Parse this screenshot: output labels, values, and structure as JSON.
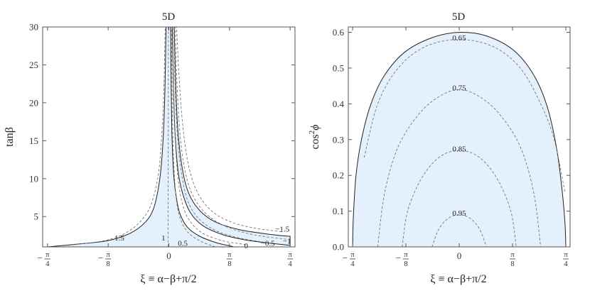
{
  "panels": [
    {
      "title": "5D",
      "ylabel": "tanβ",
      "xlabel": "ξ ≡ α−β+π/2",
      "x_ticks": [
        {
          "value": -0.7854,
          "num": "π",
          "den": "4",
          "neg": true
        },
        {
          "value": -0.3927,
          "num": "π",
          "den": "8",
          "neg": true
        },
        {
          "value": 0,
          "text": "0"
        },
        {
          "value": 0.3927,
          "num": "π",
          "den": "8",
          "neg": false
        },
        {
          "value": 0.7854,
          "num": "π",
          "den": "4",
          "neg": false
        }
      ],
      "y_ticks": [
        "5",
        "10",
        "15",
        "20",
        "25",
        "30"
      ],
      "contour_labels": [
        {
          "text": "1.5",
          "x": -0.32,
          "y": 2.2
        },
        {
          "text": "1",
          "x": -0.035,
          "y": 2.2
        },
        {
          "text": "0.5",
          "x": 0.09,
          "y": 1.5
        },
        {
          "text": "0",
          "x": 0.5,
          "y": 1.2
        },
        {
          "text": "−0.5",
          "x": 0.64,
          "y": 1.5
        },
        {
          "text": "−1",
          "x": 0.765,
          "y": 1.8
        },
        {
          "text": "−1.5",
          "x": 0.735,
          "y": 3.4
        }
      ]
    },
    {
      "title": "5D",
      "ylabel": "cos²ϕ",
      "ylabel_main": "cos",
      "ylabel_sup": "2",
      "ylabel_var": "ϕ",
      "xlabel": "ξ ≡ α−β+π/2",
      "x_ticks": [
        {
          "value": -0.7854,
          "num": "π",
          "den": "4",
          "neg": true
        },
        {
          "value": -0.3927,
          "num": "π",
          "den": "8",
          "neg": true
        },
        {
          "value": 0,
          "text": "0"
        },
        {
          "value": 0.3927,
          "num": "π",
          "den": "8",
          "neg": false
        },
        {
          "value": 0.7854,
          "num": "π",
          "den": "4",
          "neg": false
        }
      ],
      "y_ticks": [
        "0.0",
        "0.1",
        "0.2",
        "0.3",
        "0.4",
        "0.5",
        "0.6"
      ],
      "contour_labels": [
        {
          "text": "0.65",
          "x": 0.0,
          "y": 0.585
        },
        {
          "text": "0.75",
          "x": 0.0,
          "y": 0.445
        },
        {
          "text": "0.85",
          "x": 0.0,
          "y": 0.275
        },
        {
          "text": "0.95",
          "x": 0.0,
          "y": 0.095
        }
      ]
    }
  ],
  "chart_data": [
    {
      "type": "area",
      "title": "5D",
      "xlabel": "ξ ≡ α−β+π/2",
      "ylabel": "tanβ",
      "xlim": [
        -0.8168,
        0.8168
      ],
      "ylim": [
        1,
        30
      ],
      "grid": false,
      "allowed_region": {
        "left_boundary": [
          [
            -0.785,
            1.0
          ],
          [
            -0.6,
            1.35
          ],
          [
            -0.4,
            1.8
          ],
          [
            -0.25,
            2.8
          ],
          [
            -0.15,
            4.3
          ],
          [
            -0.1,
            6.0
          ],
          [
            -0.07,
            8.5
          ],
          [
            -0.05,
            11.5
          ],
          [
            -0.035,
            16.0
          ],
          [
            -0.025,
            22.0
          ],
          [
            -0.018,
            30.0
          ]
        ],
        "inner_left_boundary": [
          [
            0.012,
            30.0
          ],
          [
            0.015,
            22.0
          ],
          [
            0.02,
            16.0
          ],
          [
            0.03,
            11.0
          ],
          [
            0.045,
            8.0
          ],
          [
            0.07,
            5.5
          ],
          [
            0.12,
            3.6
          ],
          [
            0.2,
            2.4
          ],
          [
            0.3,
            1.6
          ],
          [
            0.38,
            1.2
          ],
          [
            0.42,
            1.0
          ]
        ],
        "inner_right_boundary": [
          [
            0.022,
            30.0
          ],
          [
            0.03,
            22.0
          ],
          [
            0.04,
            16.0
          ],
          [
            0.06,
            11.0
          ],
          [
            0.09,
            8.0
          ],
          [
            0.14,
            5.5
          ],
          [
            0.22,
            3.8
          ],
          [
            0.35,
            2.6
          ],
          [
            0.5,
            1.9
          ],
          [
            0.65,
            1.5
          ],
          [
            0.785,
            1.2
          ]
        ],
        "right_boundary": [
          [
            0.035,
            30.0
          ],
          [
            0.045,
            22.0
          ],
          [
            0.06,
            16.0
          ],
          [
            0.09,
            11.0
          ],
          [
            0.13,
            8.0
          ],
          [
            0.2,
            5.8
          ],
          [
            0.3,
            4.3
          ],
          [
            0.45,
            3.3
          ],
          [
            0.6,
            2.8
          ],
          [
            0.72,
            2.5
          ],
          [
            0.785,
            2.4
          ]
        ]
      },
      "contours": [
        {
          "level": "1.5",
          "points": [
            [
              -0.65,
              1.2
            ],
            [
              -0.4,
              1.9
            ],
            [
              -0.25,
              3.2
            ],
            [
              -0.15,
              5.2
            ],
            [
              -0.1,
              7.5
            ],
            [
              -0.065,
              11.0
            ],
            [
              -0.045,
              16.0
            ],
            [
              -0.032,
              22.0
            ],
            [
              -0.024,
              30.0
            ]
          ]
        },
        {
          "level": "1",
          "points": [
            [
              -0.005,
              1.0
            ],
            [
              -0.005,
              5.0
            ],
            [
              -0.004,
              12.0
            ],
            [
              -0.003,
              22.0
            ],
            [
              -0.003,
              30.0
            ]
          ]
        },
        {
          "level": "0.5",
          "points": [
            [
              0.3,
              1.0
            ],
            [
              0.2,
              1.8
            ],
            [
              0.12,
              3.0
            ],
            [
              0.07,
              5.0
            ],
            [
              0.045,
              8.0
            ],
            [
              0.03,
              13.0
            ],
            [
              0.022,
              20.0
            ],
            [
              0.017,
              30.0
            ]
          ]
        },
        {
          "level": "0",
          "points": [
            [
              0.5,
              1.3
            ],
            [
              0.35,
              1.8
            ],
            [
              0.22,
              2.8
            ],
            [
              0.14,
              4.3
            ],
            [
              0.09,
              6.5
            ],
            [
              0.06,
              10.0
            ],
            [
              0.042,
              15.0
            ],
            [
              0.03,
              22.0
            ],
            [
              0.025,
              30.0
            ]
          ]
        },
        {
          "level": "−0.5",
          "points": [
            [
              0.62,
              1.6
            ],
            [
              0.45,
              2.2
            ],
            [
              0.3,
              3.2
            ],
            [
              0.19,
              4.8
            ],
            [
              0.12,
              7.2
            ],
            [
              0.08,
              11.0
            ],
            [
              0.055,
              16.0
            ],
            [
              0.04,
              23.0
            ],
            [
              0.033,
              30.0
            ]
          ]
        },
        {
          "level": "−1",
          "points": [
            [
              0.76,
              2.0
            ],
            [
              0.55,
              2.6
            ],
            [
              0.38,
              3.6
            ],
            [
              0.25,
              5.2
            ],
            [
              0.16,
              7.6
            ],
            [
              0.105,
              11.0
            ],
            [
              0.072,
              16.0
            ],
            [
              0.052,
              23.0
            ],
            [
              0.042,
              30.0
            ]
          ]
        },
        {
          "level": "−1.5",
          "points": [
            [
              0.73,
              3.0
            ],
            [
              0.55,
              3.5
            ],
            [
              0.4,
              4.3
            ],
            [
              0.28,
              5.7
            ],
            [
              0.19,
              8.0
            ],
            [
              0.13,
              11.5
            ],
            [
              0.09,
              17.0
            ],
            [
              0.065,
              24.0
            ],
            [
              0.05,
              30.0
            ]
          ]
        }
      ]
    },
    {
      "type": "area",
      "title": "5D",
      "xlabel": "ξ ≡ α−β+π/2",
      "ylabel": "cos²ϕ",
      "xlim": [
        -0.8168,
        0.8168
      ],
      "ylim": [
        0,
        0.615
      ],
      "grid": false,
      "allowed_region": {
        "boundary": [
          [
            -0.785,
            0.0
          ],
          [
            -0.78,
            0.08
          ],
          [
            -0.76,
            0.2
          ],
          [
            -0.72,
            0.3
          ],
          [
            -0.65,
            0.4
          ],
          [
            -0.55,
            0.48
          ],
          [
            -0.4,
            0.545
          ],
          [
            -0.2,
            0.585
          ],
          [
            0.0,
            0.6
          ],
          [
            0.2,
            0.59
          ],
          [
            0.4,
            0.55
          ],
          [
            0.55,
            0.48
          ],
          [
            0.65,
            0.39
          ],
          [
            0.72,
            0.27
          ],
          [
            0.76,
            0.15
          ],
          [
            0.78,
            0.06
          ],
          [
            0.785,
            0.0
          ]
        ]
      },
      "contours": [
        {
          "level": "0.65",
          "points": [
            [
              -0.7,
              0.25
            ],
            [
              -0.6,
              0.4
            ],
            [
              -0.45,
              0.5
            ],
            [
              -0.25,
              0.56
            ],
            [
              0.0,
              0.58
            ],
            [
              0.25,
              0.56
            ],
            [
              0.45,
              0.5
            ],
            [
              0.6,
              0.4
            ],
            [
              0.7,
              0.3
            ],
            [
              0.78,
              0.15
            ]
          ]
        },
        {
          "level": "0.75",
          "points": [
            [
              -0.6,
              0.0
            ],
            [
              -0.55,
              0.15
            ],
            [
              -0.45,
              0.28
            ],
            [
              -0.3,
              0.37
            ],
            [
              -0.15,
              0.42
            ],
            [
              0.0,
              0.44
            ],
            [
              0.15,
              0.42
            ],
            [
              0.3,
              0.37
            ],
            [
              0.45,
              0.28
            ],
            [
              0.55,
              0.15
            ],
            [
              0.6,
              0.0
            ]
          ]
        },
        {
          "level": "0.85",
          "points": [
            [
              -0.42,
              0.0
            ],
            [
              -0.38,
              0.1
            ],
            [
              -0.28,
              0.19
            ],
            [
              -0.15,
              0.25
            ],
            [
              0.0,
              0.27
            ],
            [
              0.15,
              0.25
            ],
            [
              0.28,
              0.19
            ],
            [
              0.38,
              0.1
            ],
            [
              0.42,
              0.0
            ]
          ]
        },
        {
          "level": "0.95",
          "points": [
            [
              -0.2,
              0.0
            ],
            [
              -0.15,
              0.05
            ],
            [
              -0.08,
              0.08
            ],
            [
              0.0,
              0.09
            ],
            [
              0.08,
              0.08
            ],
            [
              0.15,
              0.05
            ],
            [
              0.2,
              0.0
            ]
          ]
        }
      ]
    }
  ]
}
